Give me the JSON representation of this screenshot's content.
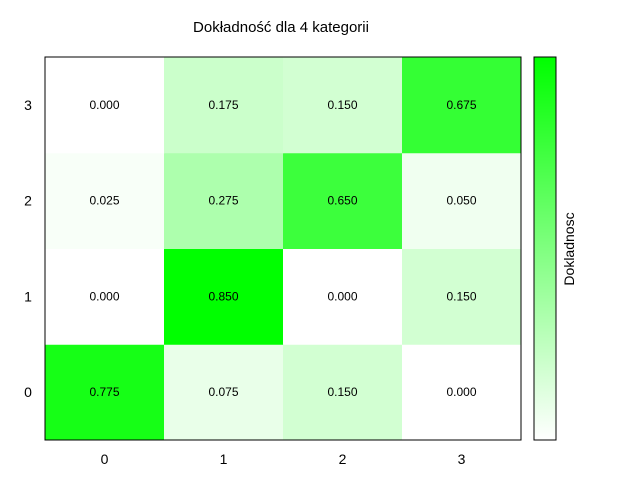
{
  "chart_data": {
    "type": "heatmap",
    "title": "Dokładność dla 4 kategorii",
    "x_categories": [
      "0",
      "1",
      "2",
      "3"
    ],
    "y_categories": [
      "0",
      "1",
      "2",
      "3"
    ],
    "values": [
      [
        "0.775",
        "0.075",
        "0.150",
        "0.000"
      ],
      [
        "0.000",
        "0.850",
        "0.000",
        "0.150"
      ],
      [
        "0.025",
        "0.275",
        "0.650",
        "0.050"
      ],
      [
        "0.000",
        "0.175",
        "0.150",
        "0.675"
      ]
    ],
    "value_range": [
      0,
      0.85
    ],
    "colorbar": {
      "label": "Dokladnosc",
      "low_color": "#ffffff",
      "high_color": "#00ff00"
    },
    "grid": false,
    "legend_position": "right"
  }
}
